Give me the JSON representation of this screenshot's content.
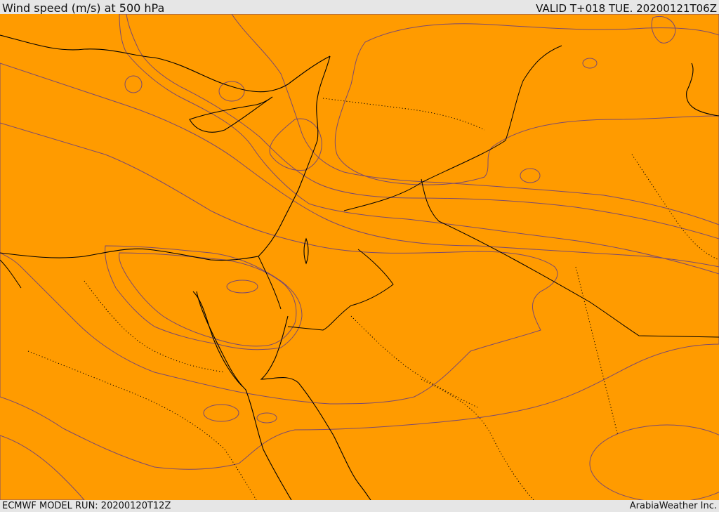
{
  "header": {
    "title": "Wind speed (m/s) at 500 hPa",
    "valid": "VALID T+018 TUE. 20200121T06Z"
  },
  "footer": {
    "model_run": "ECMWF MODEL RUN: 20200120T12Z",
    "credit": "ArabiaWeather Inc."
  },
  "map": {
    "field": "wind-speed-500hpa",
    "palette": {
      "white": "#ffffff",
      "pale": "#fde0b0",
      "yellow": "#ffff00",
      "gold": "#ffd800",
      "amber": "#ffb400",
      "orange_light": "#ff9b00",
      "orange": "#ff8200",
      "orange_dark": "#ff6a00",
      "red_orange": "#ff5400",
      "red": "#ff3d00"
    }
  }
}
